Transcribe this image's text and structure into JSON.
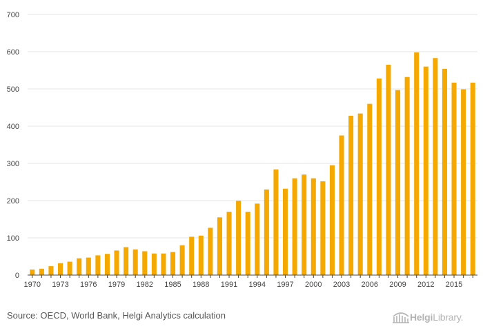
{
  "chart_data": {
    "type": "bar",
    "x": [
      1970,
      1971,
      1972,
      1973,
      1974,
      1975,
      1976,
      1977,
      1978,
      1979,
      1980,
      1981,
      1982,
      1983,
      1984,
      1985,
      1986,
      1987,
      1988,
      1989,
      1990,
      1991,
      1992,
      1993,
      1994,
      1995,
      1996,
      1997,
      1998,
      1999,
      2000,
      2001,
      2002,
      2003,
      2004,
      2005,
      2006,
      2007,
      2008,
      2009,
      2010,
      2011,
      2012,
      2013,
      2014,
      2015,
      2016,
      2017
    ],
    "values": [
      15,
      17,
      24,
      32,
      36,
      45,
      47,
      53,
      57,
      66,
      75,
      69,
      64,
      58,
      58,
      62,
      80,
      103,
      106,
      127,
      155,
      170,
      200,
      170,
      192,
      230,
      284,
      232,
      260,
      270,
      260,
      252,
      295,
      375,
      428,
      434,
      460,
      528,
      565,
      497,
      532,
      598,
      560,
      583,
      554,
      517,
      499,
      517
    ],
    "x_tick_labels": [
      "1970",
      "1973",
      "1976",
      "1979",
      "1982",
      "1985",
      "1988",
      "1991",
      "1994",
      "1997",
      "2000",
      "2003",
      "2006",
      "2009",
      "2012",
      "2015"
    ],
    "y_ticks": [
      0,
      100,
      200,
      300,
      400,
      500,
      600,
      700
    ],
    "ylim": [
      0,
      700
    ],
    "bar_color": "#f5a800",
    "grid": true,
    "title": "",
    "xlabel": "",
    "ylabel": ""
  },
  "footer": {
    "source": "Source: OECD, World Bank, Helgi Analytics calculation",
    "logo_bold": "Helgi",
    "logo_regular": "Library",
    "logo_dot": "."
  }
}
